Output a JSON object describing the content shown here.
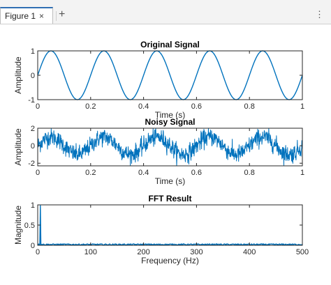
{
  "tabbar": {
    "tab_label": "Figure 1",
    "close_glyph": "×",
    "add_glyph": "+",
    "menu_glyph": "⋮"
  },
  "colors": {
    "line": "#0072BD",
    "axes": "#262626",
    "title": "#000000"
  },
  "chart_data": [
    {
      "type": "line",
      "title": "Original Signal",
      "xlabel": "Time (s)",
      "ylabel": "Amplitude",
      "xlim": [
        0,
        1
      ],
      "ylim": [
        -1,
        1
      ],
      "xticks": [
        0,
        0.2,
        0.4,
        0.6,
        0.8,
        1
      ],
      "xtick_labels": [
        "0",
        "0.2",
        "0.4",
        "0.6",
        "0.8",
        "1"
      ],
      "yticks": [
        -1,
        0,
        1
      ],
      "ytick_labels": [
        "-1",
        "0",
        "1"
      ],
      "series": [
        {
          "function": "sin",
          "amplitude": 1,
          "frequency_hz": 5,
          "x_range": [
            0,
            1
          ]
        }
      ]
    },
    {
      "type": "line",
      "title": "Noisy Signal",
      "xlabel": "Time (s)",
      "ylabel": "Amplitude",
      "xlim": [
        0,
        1
      ],
      "ylim": [
        -2.3,
        2
      ],
      "xticks": [
        0,
        0.2,
        0.4,
        0.6,
        0.8,
        1
      ],
      "xtick_labels": [
        "0",
        "0.2",
        "0.4",
        "0.6",
        "0.8",
        "1"
      ],
      "yticks": [
        -2,
        0,
        2
      ],
      "ytick_labels": [
        "-2",
        "0",
        "2"
      ],
      "series": [
        {
          "function": "sin+noise",
          "amplitude": 1,
          "frequency_hz": 5,
          "noise_std": 0.5,
          "x_range": [
            0,
            1
          ]
        }
      ]
    },
    {
      "type": "line",
      "title": "FFT Result",
      "xlabel": "Frequency (Hz)",
      "ylabel": "Magnitude",
      "xlim": [
        0,
        500
      ],
      "ylim": [
        0,
        1
      ],
      "xticks": [
        0,
        100,
        200,
        300,
        400,
        500
      ],
      "xtick_labels": [
        "0",
        "100",
        "200",
        "300",
        "400",
        "500"
      ],
      "yticks": [
        0,
        0.5,
        1
      ],
      "ytick_labels": [
        "0",
        "0.5",
        "1"
      ],
      "series": [
        {
          "peak_x": 5,
          "peak_y": 0.98,
          "noise_floor": 0.02,
          "x_range": [
            0,
            500
          ]
        }
      ]
    }
  ]
}
